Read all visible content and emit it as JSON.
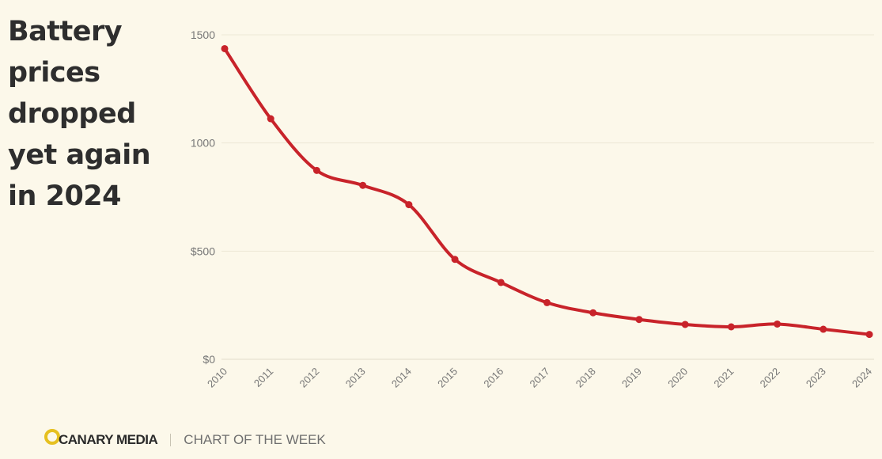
{
  "headline": "Battery prices dropped yet again in 2024",
  "footer": {
    "brand": "CANARY MEDIA",
    "tagline": "CHART OF THE WEEK",
    "logo_color": "#e6c020"
  },
  "colors": {
    "background": "#fcf8ea",
    "line": "#c8232a",
    "text": "#2e2e2e"
  },
  "chart_data": {
    "type": "line",
    "title": "Battery prices dropped yet again in 2024",
    "xlabel": "",
    "ylabel": "",
    "x": [
      "2010",
      "2011",
      "2012",
      "2013",
      "2014",
      "2015",
      "2016",
      "2017",
      "2018",
      "2019",
      "2020",
      "2021",
      "2022",
      "2023",
      "2024"
    ],
    "y": [
      1436,
      1112,
      873,
      804,
      715,
      462,
      355,
      262,
      215,
      184,
      161,
      150,
      163,
      139,
      115
    ],
    "ylim": [
      0,
      1500
    ],
    "yticks": [
      0,
      500,
      1000,
      1500
    ],
    "ytick_labels": [
      "$0",
      "$500",
      "1000",
      "1500"
    ],
    "grid": true,
    "line_color": "#c8232a",
    "markers": true
  }
}
